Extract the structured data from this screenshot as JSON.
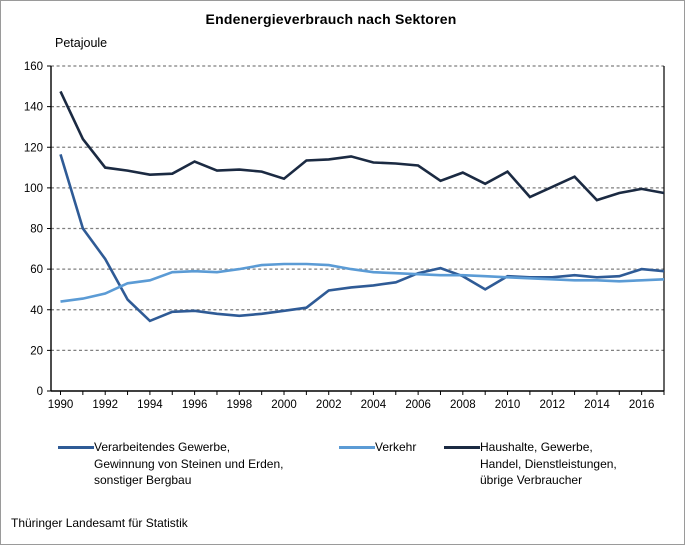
{
  "title": "Endenergieverbrauch nach Sektoren",
  "y_axis_title": "Petajoule",
  "source": "Thüringer Landesamt für Statistik",
  "chart_data": {
    "type": "line",
    "title": "Endenergieverbrauch nach Sektoren",
    "ylabel": "Petajoule",
    "xlabel": "",
    "ylim": [
      0,
      160
    ],
    "ytick_step": 20,
    "grid": "horizontal-dashed",
    "legend_position": "bottom",
    "x": [
      1990,
      1991,
      1992,
      1993,
      1994,
      1995,
      1996,
      1997,
      1998,
      1999,
      2000,
      2001,
      2002,
      2003,
      2004,
      2005,
      2006,
      2007,
      2008,
      2009,
      2010,
      2011,
      2012,
      2013,
      2014,
      2015,
      2016,
      2017
    ],
    "xtick_labels": [
      "1990",
      "1992",
      "1994",
      "1996",
      "1998",
      "2000",
      "2002",
      "2004",
      "2006",
      "2008",
      "2010",
      "2012",
      "2014",
      "2016"
    ],
    "series": [
      {
        "name": "Verarbeitendes Gewerbe, Gewinnung von Steinen und Erden, sonstiger Bergbau",
        "color": "#2f5b96",
        "values": [
          116.5,
          80,
          65,
          45,
          34.5,
          39,
          39.5,
          38,
          37,
          38,
          39.5,
          41,
          49.5,
          51,
          52,
          53.5,
          58,
          60.5,
          56.5,
          50,
          56.5,
          56,
          56,
          57,
          56,
          56.5,
          60,
          59
        ]
      },
      {
        "name": "Verkehr",
        "color": "#5b9bd5",
        "values": [
          44,
          45.5,
          48,
          53,
          54.5,
          58.5,
          59,
          58.5,
          60,
          62,
          62.5,
          62.5,
          62,
          60,
          58.5,
          58,
          57.5,
          57,
          57,
          56.5,
          56,
          55.5,
          55,
          54.5,
          54.5,
          54,
          54.5,
          55
        ]
      },
      {
        "name": "Haushalte, Gewerbe, Handel, Dienstleistungen, übrige Verbraucher",
        "color": "#1b2a42",
        "values": [
          147.5,
          124,
          110,
          108.5,
          106.5,
          107,
          113,
          108.5,
          109,
          108,
          104.5,
          113.5,
          114,
          115.5,
          112.5,
          112,
          111,
          103.5,
          107.5,
          102,
          108,
          95.5,
          100.5,
          105.5,
          94,
          97.5,
          99.5,
          97.5
        ]
      }
    ]
  },
  "legend": {
    "items": [
      {
        "series": "Verarbeitendes Gewerbe, Gewinnung von Steinen und Erden, sonstiger Bergbau",
        "color": "#2f5b96",
        "lines": [
          "Verarbeitendes Gewerbe,",
          "Gewinnung von Steinen und Erden,",
          "sonstiger Bergbau"
        ]
      },
      {
        "series": "Verkehr",
        "color": "#5b9bd5",
        "lines": [
          "Verkehr"
        ]
      },
      {
        "series": "Haushalte, Gewerbe, Handel, Dienstleistungen, übrige Verbraucher",
        "color": "#1b2a42",
        "lines": [
          "Haushalte, Gewerbe,",
          "Handel, Dienstleistungen,",
          "übrige Verbraucher"
        ]
      }
    ]
  }
}
